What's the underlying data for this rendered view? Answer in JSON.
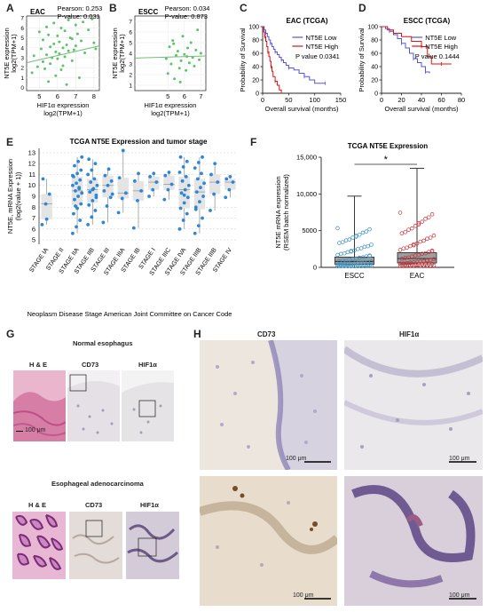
{
  "panels": {
    "A": {
      "label": "A",
      "chart_data": {
        "type": "scatter",
        "title": "EAC",
        "stats": [
          "Pearson: 0.253",
          "P-value: 0.031"
        ],
        "xlabel": "HIF1α expression log2(TPM+1)",
        "xlabel_lines": [
          "HIF1α expression",
          "log2(TPM+1)"
        ],
        "ylabel_lines": [
          "NT5E expression",
          "log2(TPM+1)"
        ],
        "xlim": [
          4.3,
          8.3
        ],
        "ylim": [
          -0.3,
          7.2
        ],
        "xticks": [
          5,
          6,
          7,
          8
        ],
        "yticks": [
          0,
          1,
          2,
          3,
          4,
          5,
          6,
          7
        ],
        "fit": {
          "x": [
            4.3,
            8.3
          ],
          "y": [
            2.5,
            4.2
          ]
        },
        "points": [
          [
            4.6,
            1.5
          ],
          [
            4.7,
            3.2
          ],
          [
            4.9,
            2.1
          ],
          [
            5.0,
            5.6
          ],
          [
            5.1,
            3.9
          ],
          [
            5.2,
            4.8
          ],
          [
            5.2,
            2.6
          ],
          [
            5.3,
            1.9
          ],
          [
            5.4,
            6.1
          ],
          [
            5.4,
            3.3
          ],
          [
            5.5,
            5.3
          ],
          [
            5.5,
            0.6
          ],
          [
            5.6,
            4.1
          ],
          [
            5.6,
            2.4
          ],
          [
            5.7,
            3.0
          ],
          [
            5.8,
            6.5
          ],
          [
            5.8,
            4.4
          ],
          [
            5.9,
            1.2
          ],
          [
            5.9,
            3.6
          ],
          [
            6.0,
            5.2
          ],
          [
            6.0,
            2.9
          ],
          [
            6.1,
            4.6
          ],
          [
            6.1,
            3.4
          ],
          [
            6.2,
            6.0
          ],
          [
            6.2,
            1.8
          ],
          [
            6.3,
            4.0
          ],
          [
            6.3,
            2.2
          ],
          [
            6.4,
            5.7
          ],
          [
            6.4,
            3.1
          ],
          [
            6.5,
            4.3
          ],
          [
            6.5,
            0.3
          ],
          [
            6.6,
            6.8
          ],
          [
            6.6,
            3.7
          ],
          [
            6.7,
            5.0
          ],
          [
            6.8,
            2.7
          ],
          [
            6.8,
            4.9
          ],
          [
            6.9,
            3.8
          ],
          [
            7.0,
            6.3
          ],
          [
            7.0,
            4.2
          ],
          [
            7.1,
            5.4
          ],
          [
            7.2,
            1.0
          ],
          [
            7.3,
            4.7
          ],
          [
            7.4,
            6.6
          ],
          [
            7.5,
            3.5
          ],
          [
            7.7,
            5.8
          ],
          [
            7.9,
            6.9
          ],
          [
            8.0,
            4.5
          ],
          [
            8.1,
            3.9
          ]
        ]
      }
    },
    "B": {
      "label": "B",
      "chart_data": {
        "type": "scatter",
        "title": "ESCC",
        "stats": [
          "Pearson: 0.034",
          "P-value: 0.873"
        ],
        "xlabel": "HIF1α expression log2(TPM+1)",
        "xlabel_lines": [
          "HIF1α expression",
          "log2(TPM+1)"
        ],
        "ylabel_lines": [
          "NT5E expression",
          "log2(TPM+1)"
        ],
        "xlim": [
          3.0,
          7.3
        ],
        "ylim": [
          0.5,
          7.5
        ],
        "xticks": [
          5,
          6,
          7
        ],
        "yticks": [
          1,
          2,
          3,
          4,
          5,
          6,
          7
        ],
        "fit": {
          "x": [
            3.0,
            7.3
          ],
          "y": [
            3.55,
            3.75
          ]
        },
        "points": [
          [
            4.9,
            3.5
          ],
          [
            5.0,
            2.1
          ],
          [
            5.1,
            4.6
          ],
          [
            5.2,
            3.0
          ],
          [
            5.3,
            5.2
          ],
          [
            5.4,
            1.6
          ],
          [
            5.5,
            3.8
          ],
          [
            5.6,
            4.2
          ],
          [
            5.7,
            2.6
          ],
          [
            5.8,
            3.3
          ],
          [
            5.9,
            5.6
          ],
          [
            6.0,
            3.9
          ],
          [
            6.1,
            2.4
          ],
          [
            6.2,
            4.5
          ],
          [
            6.3,
            3.1
          ],
          [
            6.4,
            5.0
          ],
          [
            6.5,
            3.6
          ],
          [
            6.6,
            2.8
          ],
          [
            6.7,
            4.3
          ],
          [
            6.8,
            6.2
          ],
          [
            6.9,
            3.4
          ],
          [
            7.0,
            4.0
          ],
          [
            5.35,
            4.9
          ],
          [
            5.75,
            1.3
          ],
          [
            6.15,
            3.7
          ]
        ]
      }
    },
    "C": {
      "label": "C",
      "chart_data": {
        "type": "line",
        "title": "EAC (TCGA)",
        "xlabel": "Overall survival (months)",
        "ylabel": "Probability of Survival",
        "xlim": [
          0,
          150
        ],
        "ylim": [
          0,
          100
        ],
        "xticks": [
          0,
          50,
          100,
          150
        ],
        "yticks": [
          0,
          20,
          40,
          60,
          80,
          100
        ],
        "annotation": "P value 0.0341",
        "legend_position": "top-right",
        "series": [
          {
            "name": "NT5E Low",
            "color": "#5555dd",
            "x": [
              0,
              3,
              6,
              9,
              12,
              15,
              18,
              21,
              24,
              28,
              32,
              36,
              40,
              45,
              50,
              60,
              70,
              80,
              90,
              100,
              120
            ],
            "y": [
              100,
              95,
              90,
              85,
              80,
              75,
              70,
              66,
              62,
              58,
              54,
              50,
              46,
              42,
              38,
              35,
              30,
              25,
              20,
              15,
              15
            ]
          },
          {
            "name": "NT5E High",
            "color": "#dd1111",
            "x": [
              0,
              2,
              4,
              6,
              8,
              10,
              12,
              14,
              16,
              18,
              20,
              24,
              28,
              32,
              36
            ],
            "y": [
              100,
              92,
              85,
              78,
              70,
              62,
              55,
              48,
              40,
              33,
              25,
              18,
              12,
              5,
              2
            ]
          }
        ]
      }
    },
    "D": {
      "label": "D",
      "chart_data": {
        "type": "line",
        "title": "ESCC (TCGA)",
        "xlabel": "Overall survival (months)",
        "ylabel": "Probability of Survival",
        "xlim": [
          0,
          80
        ],
        "ylim": [
          0,
          100
        ],
        "xticks": [
          0,
          20,
          40,
          60,
          80
        ],
        "yticks": [
          0,
          20,
          40,
          60,
          80,
          100
        ],
        "annotation": "P value 0.1444",
        "legend_position": "top-right",
        "series": [
          {
            "name": "NT5E Low",
            "color": "#5555dd",
            "x": [
              0,
              4,
              8,
              12,
              16,
              20,
              24,
              28,
              32,
              36,
              40,
              44,
              48
            ],
            "y": [
              100,
              97,
              93,
              88,
              82,
              75,
              68,
              60,
              52,
              46,
              40,
              32,
              30
            ]
          },
          {
            "name": "NT5E High",
            "color": "#dd1111",
            "x": [
              0,
              6,
              12,
              20,
              30,
              40,
              46,
              50,
              60,
              70
            ],
            "y": [
              100,
              95,
              90,
              85,
              78,
              70,
              55,
              44,
              44,
              44
            ]
          }
        ]
      }
    },
    "E": {
      "label": "E",
      "chart_data": {
        "type": "box",
        "title": "TCGA NT5E Expression and tumor stage",
        "xlabel": "Neoplasm Disease Stage American Joint Committee on Cancer Code",
        "ylabel": "NT5E, mRNA Expression (log2(value + 1))",
        "ylabel_lines": [
          "NT5E, mRNA Expression",
          "(log2(value + 1))"
        ],
        "ylim": [
          4.6,
          13.4
        ],
        "yticks": [
          5,
          6,
          7,
          8,
          9,
          10,
          11,
          12,
          13
        ],
        "categories": [
          "STAGE IA",
          "STAGE II",
          "STAGE IIA",
          "STAGE IIB",
          "STAGE III",
          "STAGE IIIA",
          "STAGE IB",
          "STAGE I",
          "STAGE IIIC",
          "STAGE IVA",
          "STAGE IIIB",
          "STAGE IIIB",
          "STAGE IV"
        ],
        "boxes": [
          {
            "min": 6.4,
            "q1": 6.9,
            "median": 8.3,
            "q3": 9.2,
            "max": 10.6
          },
          null,
          {
            "min": 5.6,
            "q1": 8.2,
            "median": 9.5,
            "q3": 10.8,
            "max": 12.6
          },
          {
            "min": 6.4,
            "q1": 8.4,
            "median": 9.6,
            "q3": 10.6,
            "max": 12.4
          },
          {
            "min": 6.6,
            "q1": 8.9,
            "median": 10.0,
            "q3": 10.9,
            "max": 11.5
          },
          {
            "min": 7.5,
            "q1": 8.8,
            "median": 9.3,
            "q3": 10.7,
            "max": 13.2
          },
          {
            "min": 6.1,
            "q1": 8.6,
            "median": 9.5,
            "q3": 10.4,
            "max": 11.1
          },
          {
            "min": 9.0,
            "q1": 9.6,
            "median": 10.3,
            "q3": 10.8,
            "max": 11.1
          },
          {
            "min": 8.7,
            "q1": 9.6,
            "median": 10.1,
            "q3": 10.9,
            "max": 11.2
          },
          {
            "min": 6.0,
            "q1": 7.9,
            "median": 9.6,
            "q3": 10.8,
            "max": 12.6
          },
          {
            "min": 5.6,
            "q1": 7.8,
            "median": 9.4,
            "q3": 10.6,
            "max": 12.6
          },
          {
            "min": 7.7,
            "q1": 9.2,
            "median": 10.3,
            "q3": 11.0,
            "max": 12.0
          },
          {
            "min": 8.9,
            "q1": 9.6,
            "median": 10.3,
            "q3": 10.6,
            "max": 10.8
          }
        ],
        "points": [
          [
            6.4,
            8.3,
            9.2,
            10.6,
            6.9
          ],
          [],
          [
            5.6,
            6.2,
            6.8,
            7.4,
            7.9,
            8.3,
            8.7,
            9.0,
            9.3,
            9.5,
            9.7,
            10.0,
            10.2,
            10.5,
            10.8,
            11.1,
            11.4,
            11.8,
            12.2,
            12.6,
            8.1,
            9.8,
            10.9
          ],
          [
            6.4,
            7.1,
            7.7,
            8.2,
            8.6,
            9.1,
            9.4,
            9.7,
            10.0,
            10.3,
            10.6,
            11.0,
            11.4,
            12.0,
            12.4,
            9.6,
            8.9
          ],
          [
            6.6,
            8.1,
            8.9,
            9.5,
            10.0,
            10.4,
            10.9,
            11.5,
            9.2
          ],
          [
            7.5,
            8.8,
            9.3,
            10.7,
            13.2
          ],
          [
            6.1,
            8.6,
            9.5,
            10.4,
            11.1
          ],
          [
            9.0,
            9.6,
            10.3,
            10.8,
            11.1
          ],
          [
            8.7,
            9.6,
            10.1,
            10.9,
            11.2
          ],
          [
            6.0,
            6.8,
            7.4,
            7.9,
            8.4,
            8.9,
            9.3,
            9.6,
            10.0,
            10.4,
            10.8,
            11.2,
            11.7,
            12.2,
            12.6,
            9.1
          ],
          [
            5.6,
            6.3,
            7.0,
            7.8,
            8.5,
            9.0,
            9.4,
            9.8,
            10.2,
            10.6,
            11.1,
            11.6,
            12.1,
            12.6,
            8.0
          ],
          [
            7.7,
            9.2,
            10.3,
            11.0,
            12.0
          ],
          [
            8.9,
            9.6,
            10.3,
            10.6,
            10.8
          ]
        ]
      }
    },
    "F": {
      "label": "F",
      "chart_data": {
        "type": "box",
        "title": "TCGA NT5E Expression",
        "ylabel": "NT5E mRNA expression (RSEM batch normalized)",
        "ylabel_lines": [
          "NT5E mRNA expression",
          "(RSEM batch normalized)"
        ],
        "ylim": [
          0,
          15000
        ],
        "yticks": [
          0,
          5000,
          10000,
          15000
        ],
        "ytick_labels": [
          "0",
          "5000",
          "10,000",
          "15,000"
        ],
        "categories": [
          "ESCC",
          "EAC"
        ],
        "significance": "*",
        "boxes": [
          {
            "min": 0,
            "q1": 400,
            "median": 800,
            "q3": 1400,
            "max": 9700,
            "color": "#3a8fbf"
          },
          {
            "min": 0,
            "q1": 600,
            "median": 1200,
            "q3": 2000,
            "max": 13500,
            "color": "#c8323a"
          }
        ]
      }
    },
    "G": {
      "label": "G",
      "normal_title": "Normal esophagus",
      "tumor_title": "Esophageal adenocarcinoma",
      "stain_labels": [
        "H & E",
        "CD73",
        "HIF1α"
      ],
      "scale_bar": "100 μm"
    },
    "H": {
      "label": "H",
      "col_labels": [
        "CD73",
        "HIF1α"
      ],
      "scale_bar": "100 μm"
    }
  }
}
